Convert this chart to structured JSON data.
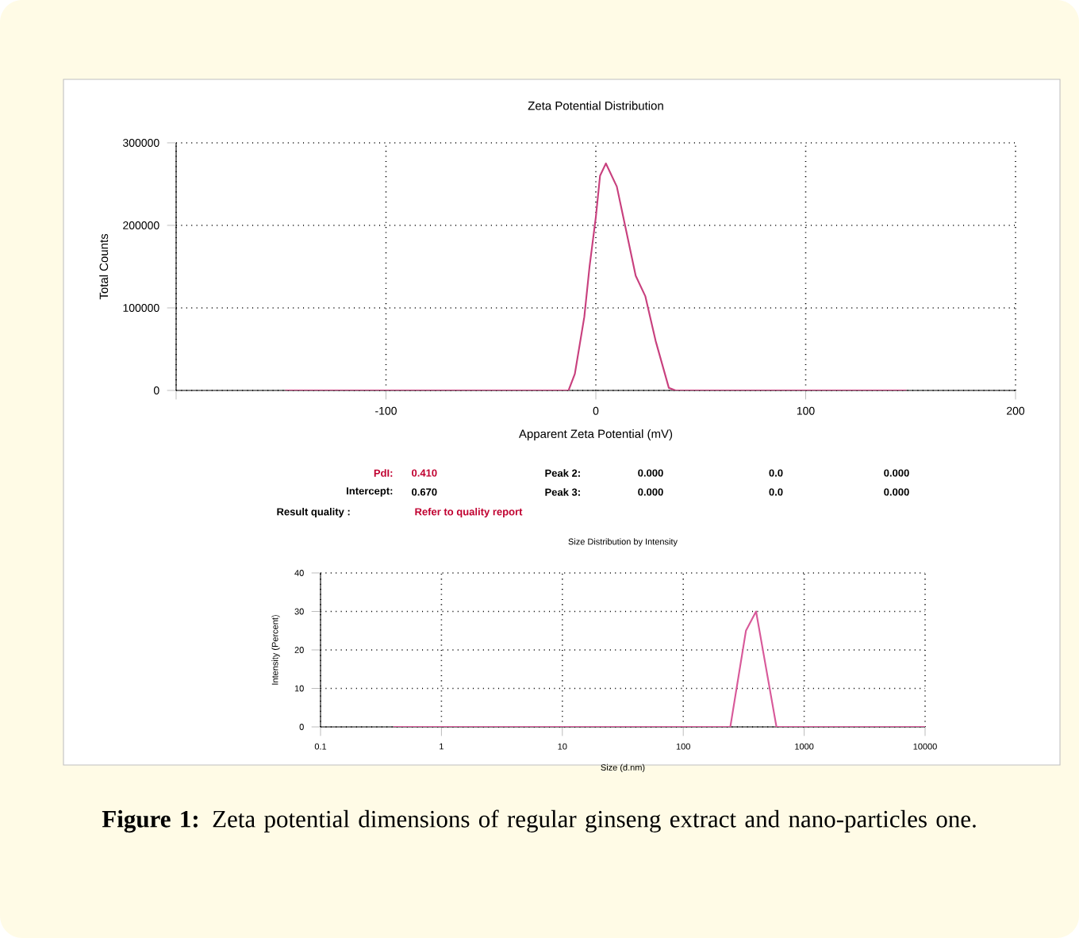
{
  "chart_data": [
    {
      "type": "line",
      "title": "Zeta Potential Distribution",
      "xlabel": "Apparent Zeta Potential (mV)",
      "ylabel": "Total Counts",
      "x": [
        -148,
        -13,
        -10,
        -5.5,
        -3,
        0,
        2,
        4.8,
        10,
        14.5,
        19,
        23.6,
        28.5,
        34.8,
        38,
        148
      ],
      "series": [
        {
          "color": "#c8407e",
          "values": [
            0,
            0,
            20000,
            89000,
            150000,
            210000,
            260000,
            275000,
            247000,
            193000,
            139000,
            114000,
            60000,
            3000,
            0,
            0
          ]
        }
      ],
      "xlim": [
        -200,
        200
      ],
      "ylim": [
        0,
        300000
      ],
      "xticks": [
        {
          "value": -200,
          "label": null
        },
        -100,
        0,
        100,
        200
      ],
      "yticks": [
        0,
        100000,
        200000,
        300000
      ],
      "grid": true,
      "annotations": [
        "PdI:",
        "0.410",
        "Peak 2:",
        "0.000",
        "0.0",
        "0.000",
        "Intercept:",
        "0.670",
        "Peak 3:",
        "0.000",
        "0.0",
        "0.000",
        "Result quality :",
        "Refer to quality report"
      ]
    },
    {
      "type": "line",
      "title": "Size Distribution by Intensity",
      "xlabel": "Size (d.nm)",
      "ylabel": "Intensity (Percent)",
      "x": [
        0.4,
        245,
        330,
        400,
        590,
        10000
      ],
      "series": [
        {
          "color": "#d85a9a",
          "values": [
            0,
            0,
            25,
            30,
            0,
            0
          ]
        }
      ],
      "log": "x",
      "xlim": [
        0.1,
        10000
      ],
      "ylim": [
        0,
        40
      ],
      "xticks": [
        0.1,
        1,
        10,
        100,
        1000,
        10000
      ],
      "yticks": [
        0,
        10,
        20,
        30,
        40
      ],
      "grid": true,
      "annotations": [
        "**Figure 1:** Zeta potential dimensions of regular ginseng extract and nano-particles one."
      ]
    }
  ]
}
